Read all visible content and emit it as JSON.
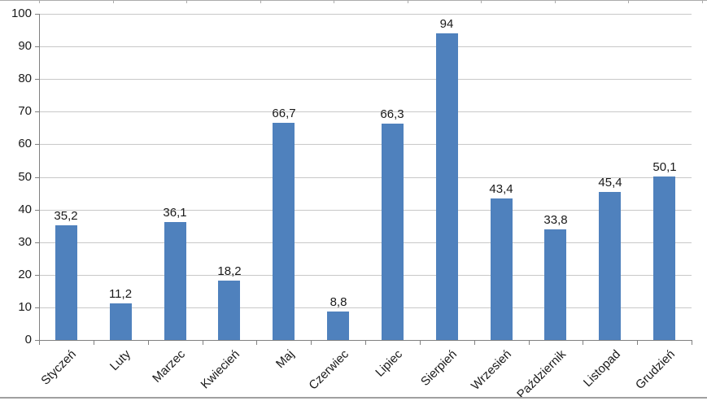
{
  "chart_data": {
    "type": "bar",
    "title": "",
    "xlabel": "",
    "ylabel": "",
    "categories": [
      "Styczeń",
      "Luty",
      "Marzec",
      "Kwiecień",
      "Maj",
      "Czerwiec",
      "Lipiec",
      "Sierpień",
      "Wrzesień",
      "Październik",
      "Listopad",
      "Grudzień"
    ],
    "values": [
      35.2,
      11.2,
      36.1,
      18.2,
      66.7,
      8.8,
      66.3,
      94,
      43.4,
      33.8,
      45.4,
      50.1
    ],
    "value_labels": [
      "35,2",
      "11,2",
      "36,1",
      "18,2",
      "66,7",
      "8,8",
      "66,3",
      "94",
      "43,4",
      "33,8",
      "45,4",
      "50,1"
    ],
    "y_ticks": [
      0,
      10,
      20,
      30,
      40,
      50,
      60,
      70,
      80,
      90,
      100
    ],
    "y_tick_labels": [
      "0",
      "10",
      "20",
      "30",
      "40",
      "50",
      "60",
      "70",
      "80",
      "90",
      "100"
    ],
    "ylim": [
      0,
      100
    ],
    "grid": true,
    "legend": false,
    "x_label_rotation_deg": 45
  },
  "colors": {
    "bar_fill": "#4F81BD",
    "gridline": "#C8C8C8",
    "axis_line": "#808080",
    "label_text": "#1A1A1A",
    "frame_line_top": "#ABABAB",
    "frame_line_bottom": "#A0A0A0",
    "background": "#FFFFFF"
  }
}
